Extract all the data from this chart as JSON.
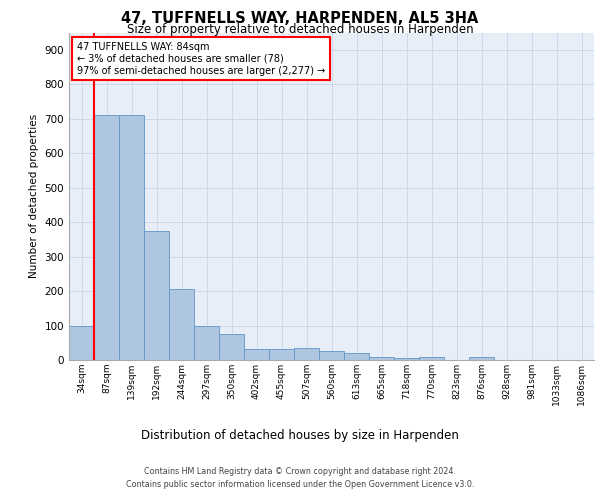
{
  "title": "47, TUFFNELLS WAY, HARPENDEN, AL5 3HA",
  "subtitle": "Size of property relative to detached houses in Harpenden",
  "xlabel": "Distribution of detached houses by size in Harpenden",
  "ylabel": "Number of detached properties",
  "bar_labels": [
    "34sqm",
    "87sqm",
    "139sqm",
    "192sqm",
    "244sqm",
    "297sqm",
    "350sqm",
    "402sqm",
    "455sqm",
    "507sqm",
    "560sqm",
    "613sqm",
    "665sqm",
    "718sqm",
    "770sqm",
    "823sqm",
    "876sqm",
    "928sqm",
    "981sqm",
    "1033sqm",
    "1086sqm"
  ],
  "bar_values": [
    100,
    710,
    710,
    375,
    205,
    100,
    75,
    32,
    33,
    35,
    25,
    20,
    10,
    5,
    10,
    0,
    10,
    0,
    0,
    0,
    0
  ],
  "bar_color": "#aec6df",
  "bar_edge_color": "#6096c8",
  "annotation_text": "47 TUFFNELLS WAY: 84sqm\n← 3% of detached houses are smaller (78)\n97% of semi-detached houses are larger (2,277) →",
  "annotation_box_color": "white",
  "annotation_box_edge_color": "red",
  "vline_x": 0.5,
  "vline_color": "red",
  "grid_color": "#c8d4e8",
  "background_color": "#e8eef8",
  "ylim": [
    0,
    950
  ],
  "yticks": [
    0,
    100,
    200,
    300,
    400,
    500,
    600,
    700,
    800,
    900
  ],
  "footer_line1": "Contains HM Land Registry data © Crown copyright and database right 2024.",
  "footer_line2": "Contains public sector information licensed under the Open Government Licence v3.0."
}
